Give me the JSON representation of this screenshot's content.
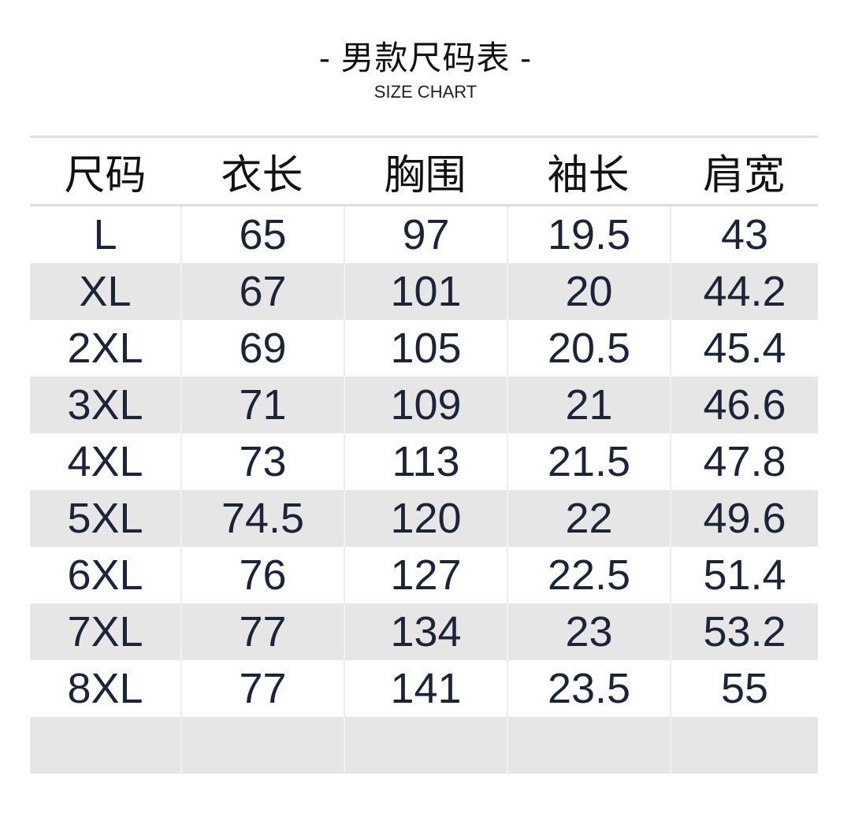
{
  "title": "- 男款尺码表 -",
  "subtitle": "SIZE CHART",
  "table": {
    "headers": [
      "尺码",
      "衣长",
      "胸围",
      "袖长",
      "肩宽"
    ],
    "rows": [
      [
        "L",
        "65",
        "97",
        "19.5",
        "43"
      ],
      [
        "XL",
        "67",
        "101",
        "20",
        "44.2"
      ],
      [
        "2XL",
        "69",
        "105",
        "20.5",
        "45.4"
      ],
      [
        "3XL",
        "71",
        "109",
        "21",
        "46.6"
      ],
      [
        "4XL",
        "73",
        "113",
        "21.5",
        "47.8"
      ],
      [
        "5XL",
        "74.5",
        "120",
        "22",
        "49.6"
      ],
      [
        "6XL",
        "76",
        "127",
        "22.5",
        "51.4"
      ],
      [
        "7XL",
        "77",
        "134",
        "23",
        "53.2"
      ],
      [
        "8XL",
        "77",
        "141",
        "23.5",
        "55"
      ],
      [
        "",
        "",
        "",
        "",
        ""
      ]
    ]
  },
  "colors": {
    "text": "#1b2438",
    "stripe": "#e6e6e6",
    "border": "#dedede"
  }
}
